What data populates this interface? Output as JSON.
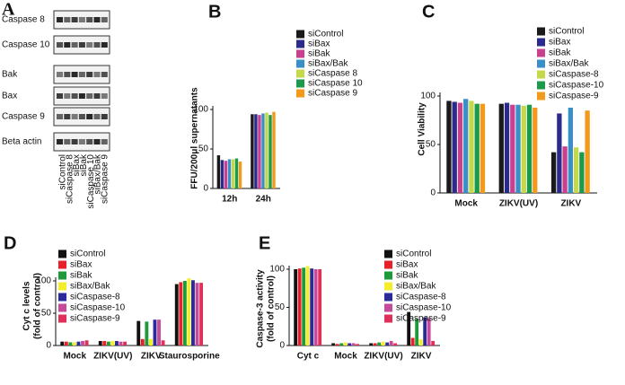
{
  "chart_data": [
    {
      "type": "blot",
      "label": "A",
      "rows": [
        "Caspase 8",
        "Caspase 10",
        "Bak",
        "Bax",
        "Caspase 9",
        "Beta actin"
      ],
      "lanes": [
        "siControl",
        "siCaspase 8",
        "siBax",
        "siBak",
        "siCaspase 10",
        "siBax/Bak",
        "siCaspase 9"
      ]
    },
    {
      "type": "bar",
      "label": "B",
      "y_label": [
        "FFU/200μl supernatants"
      ],
      "categories": [
        "12h",
        "24h"
      ],
      "ylim": [
        0,
        150
      ],
      "yticks": [
        0,
        50,
        100
      ],
      "series": [
        {
          "name": "siControl",
          "color": "#1a1a1a",
          "values": [
            42,
            94
          ]
        },
        {
          "name": "siBax",
          "color": "#2b2b8c",
          "values": [
            36,
            94
          ]
        },
        {
          "name": "siBak",
          "color": "#c9408f",
          "values": [
            35,
            93
          ]
        },
        {
          "name": "siBax/Bak",
          "color": "#3a8fc6",
          "values": [
            37,
            95
          ]
        },
        {
          "name": "siCaspase 8",
          "color": "#c4d84a",
          "values": [
            37,
            96
          ]
        },
        {
          "name": "siCaspase 10",
          "color": "#1a9a4a",
          "values": [
            38,
            93
          ]
        },
        {
          "name": "siCaspase 9",
          "color": "#f39a1a",
          "values": [
            34,
            97
          ]
        }
      ]
    },
    {
      "type": "bar",
      "label": "C",
      "y_label": [
        "Cell Viability"
      ],
      "categories": [
        "Mock",
        "ZIKV(UV)",
        "ZIKV"
      ],
      "ylim": [
        0,
        150
      ],
      "yticks": [
        0,
        50,
        100
      ],
      "series": [
        {
          "name": "siControl",
          "color": "#1a1a1a",
          "values": [
            95,
            92,
            42
          ]
        },
        {
          "name": "siBax",
          "color": "#2b2b8c",
          "values": [
            94,
            93,
            82
          ]
        },
        {
          "name": "siBak",
          "color": "#c9408f",
          "values": [
            93,
            91,
            48
          ]
        },
        {
          "name": "siBax/Bak",
          "color": "#3a8fc6",
          "values": [
            97,
            91,
            88
          ]
        },
        {
          "name": "siCaspase-8",
          "color": "#c4d84a",
          "values": [
            95,
            90,
            47
          ]
        },
        {
          "name": "siCaspase-10",
          "color": "#1a9a4a",
          "values": [
            92,
            91,
            42
          ]
        },
        {
          "name": "siCaspase-9",
          "color": "#f39a1a",
          "values": [
            92,
            88,
            85
          ]
        }
      ]
    },
    {
      "type": "bar",
      "label": "D",
      "y_label": [
        "Cyt c levels",
        "(fold of control)"
      ],
      "categories": [
        "Mock",
        "ZIKV(UV)",
        "ZIKV",
        "Staurosporine"
      ],
      "ylim": [
        0,
        150
      ],
      "yticks": [
        0,
        50,
        100
      ],
      "series": [
        {
          "name": "siControl",
          "color": "#111111",
          "values": [
            6,
            7,
            38,
            95
          ]
        },
        {
          "name": "siBax",
          "color": "#e8202a",
          "values": [
            6,
            7,
            10,
            98
          ]
        },
        {
          "name": "siBak",
          "color": "#1f9a3a",
          "values": [
            5,
            6,
            37,
            100
          ]
        },
        {
          "name": "siBax/Bak",
          "color": "#f4ee2a",
          "values": [
            5,
            7,
            10,
            104
          ]
        },
        {
          "name": "siCaspase-8",
          "color": "#2a2a9a",
          "values": [
            6,
            7,
            40,
            101
          ]
        },
        {
          "name": "siCaspase-10",
          "color": "#c54a9a",
          "values": [
            7,
            6,
            40,
            97
          ]
        },
        {
          "name": "siCaspase-9",
          "color": "#e0305a",
          "values": [
            8,
            6,
            8,
            97
          ]
        }
      ]
    },
    {
      "type": "bar",
      "label": "E",
      "y_label": [
        "Caspase-3 activity",
        "(fold of control)"
      ],
      "categories": [
        "Cyt c",
        "Mock",
        "ZIKV(UV)",
        "ZIKV"
      ],
      "ylim": [
        0,
        120
      ],
      "yticks": [
        0,
        50,
        100
      ],
      "series": [
        {
          "name": "siControl",
          "color": "#111111",
          "values": [
            100,
            3,
            3,
            44
          ]
        },
        {
          "name": "siBax",
          "color": "#e8202a",
          "values": [
            101,
            2,
            3,
            10
          ]
        },
        {
          "name": "siBak",
          "color": "#1f9a3a",
          "values": [
            102,
            3,
            4,
            35
          ]
        },
        {
          "name": "siBax/Bak",
          "color": "#f4ee2a",
          "values": [
            104,
            4,
            5,
            8
          ]
        },
        {
          "name": "siCaspase-8",
          "color": "#2a2a9a",
          "values": [
            101,
            3,
            4,
            37
          ]
        },
        {
          "name": "siCaspase-10",
          "color": "#c54a9a",
          "values": [
            100,
            3,
            6,
            36
          ]
        },
        {
          "name": "siCaspase-9",
          "color": "#e0305a",
          "values": [
            100,
            2,
            3,
            6
          ]
        }
      ]
    }
  ]
}
